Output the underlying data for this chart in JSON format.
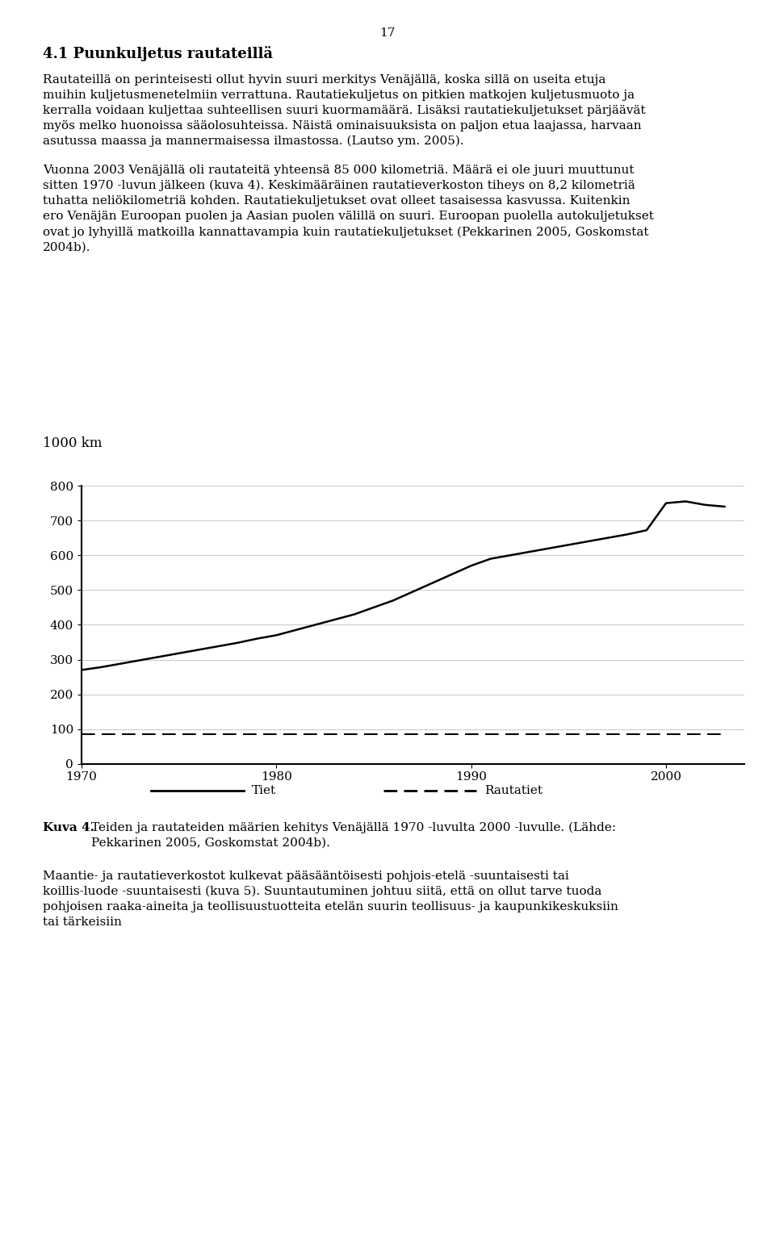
{
  "page_number": "17",
  "section_title": "4.1 Puunkuljetus rautateillä",
  "paragraph1": "Rautateillä on perinteisesti ollut hyvin suuri merkitys Venäjällä, koska sillä on useita etuja muihin kuljetusmenetelmiin verrattuna. Rautatiekuljetus on pitkien matkojen kuljetusmuoto ja kerralla voidaan kuljettaa suhteellisen suuri kuormamäärä. Lisäksi rautatiekuljetukset pärjäävät myös melko huonoissa sääolosuhteissa. Näistä ominaisuuksista on paljon etua laajassa, harvaan asutussa maassa ja mannermaisessa ilmastossa. (Lautso ym. 2005).",
  "paragraph2": "Vuonna 2003 Venäjällä oli rautateitä yhteensä 85 000 kilometriä. Määrä ei ole juuri muuttunut sitten 1970 -luvun jälkeen (kuva 4). Keskimääräinen rautatieverkoston tiheys on 8,2 kilometriä tuhatta neliökilometriä kohden. Rautatiekuljetukset ovat olleet tasaisessa kasvussa. Kuitenkin ero Venäjän Euroopan puolen ja Aasian puolen välillä on suuri. Euroopan puolella autokuljetukset ovat jo lyhyillä matkoilla kannattavampia kuin rautatiekuljetukset (Pekkarinen 2005, Goskomstat 2004b).",
  "ylabel": "1000 km",
  "yticks": [
    0,
    100,
    200,
    300,
    400,
    500,
    600,
    700,
    800
  ],
  "xticks": [
    1970,
    1980,
    1990,
    2000
  ],
  "xlim": [
    1970,
    2004
  ],
  "ylim": [
    0,
    800
  ],
  "roads_x": [
    1970,
    1971,
    1972,
    1973,
    1974,
    1975,
    1976,
    1977,
    1978,
    1979,
    1980,
    1981,
    1982,
    1983,
    1984,
    1985,
    1986,
    1987,
    1988,
    1989,
    1990,
    1991,
    1992,
    1993,
    1994,
    1995,
    1996,
    1997,
    1998,
    1999,
    2000,
    2001,
    2002,
    2003
  ],
  "roads_y": [
    270,
    278,
    288,
    298,
    308,
    318,
    328,
    338,
    348,
    360,
    370,
    385,
    400,
    415,
    430,
    450,
    470,
    495,
    520,
    545,
    570,
    590,
    600,
    610,
    620,
    630,
    640,
    650,
    660,
    672,
    750,
    755,
    745,
    740
  ],
  "railways_x": [
    1970,
    1971,
    1972,
    1973,
    1974,
    1975,
    1976,
    1977,
    1978,
    1979,
    1980,
    1981,
    1982,
    1983,
    1984,
    1985,
    1986,
    1987,
    1988,
    1989,
    1990,
    1991,
    1992,
    1993,
    1994,
    1995,
    1996,
    1997,
    1998,
    1999,
    2000,
    2001,
    2002,
    2003
  ],
  "railways_y": [
    85,
    85,
    85,
    85,
    85,
    85,
    85,
    85,
    85,
    85,
    85,
    85,
    85,
    85,
    85,
    85,
    85,
    85,
    85,
    85,
    85,
    85,
    85,
    85,
    85,
    85,
    85,
    85,
    85,
    85,
    85,
    85,
    85,
    85
  ],
  "legend_tiet": "Tiet",
  "legend_rautatiet": "Rautatiet",
  "caption_bold": "Kuva 4.",
  "caption_text": " Teiden ja rautateiden määrien kehitys Venäjällä 1970 -luvulta 2000 -luvulle. (Lähde: Pekkarinen 2005, Goskomstat 2004b).",
  "paragraph3": "Maantie- ja rautatieverkostot kulkevat pääsääntöisesti pohjois-etelä -suuntaisesti tai koillis-luode -suuntaisesti (kuva 5). Suuntautuminen johtuu siitä, että on ollut tarve tuoda pohjoisen raaka-aineita ja teollisuustuotteita etelän suurin teollisuus- ja kaupunkikeskuksiin tai tärkeisiin",
  "background_color": "#ffffff",
  "text_color": "#000000",
  "line_color": "#000000",
  "grid_color": "#cccccc",
  "font_size_body": 11,
  "font_size_title": 13,
  "font_size_axis": 11,
  "font_size_caption": 11
}
